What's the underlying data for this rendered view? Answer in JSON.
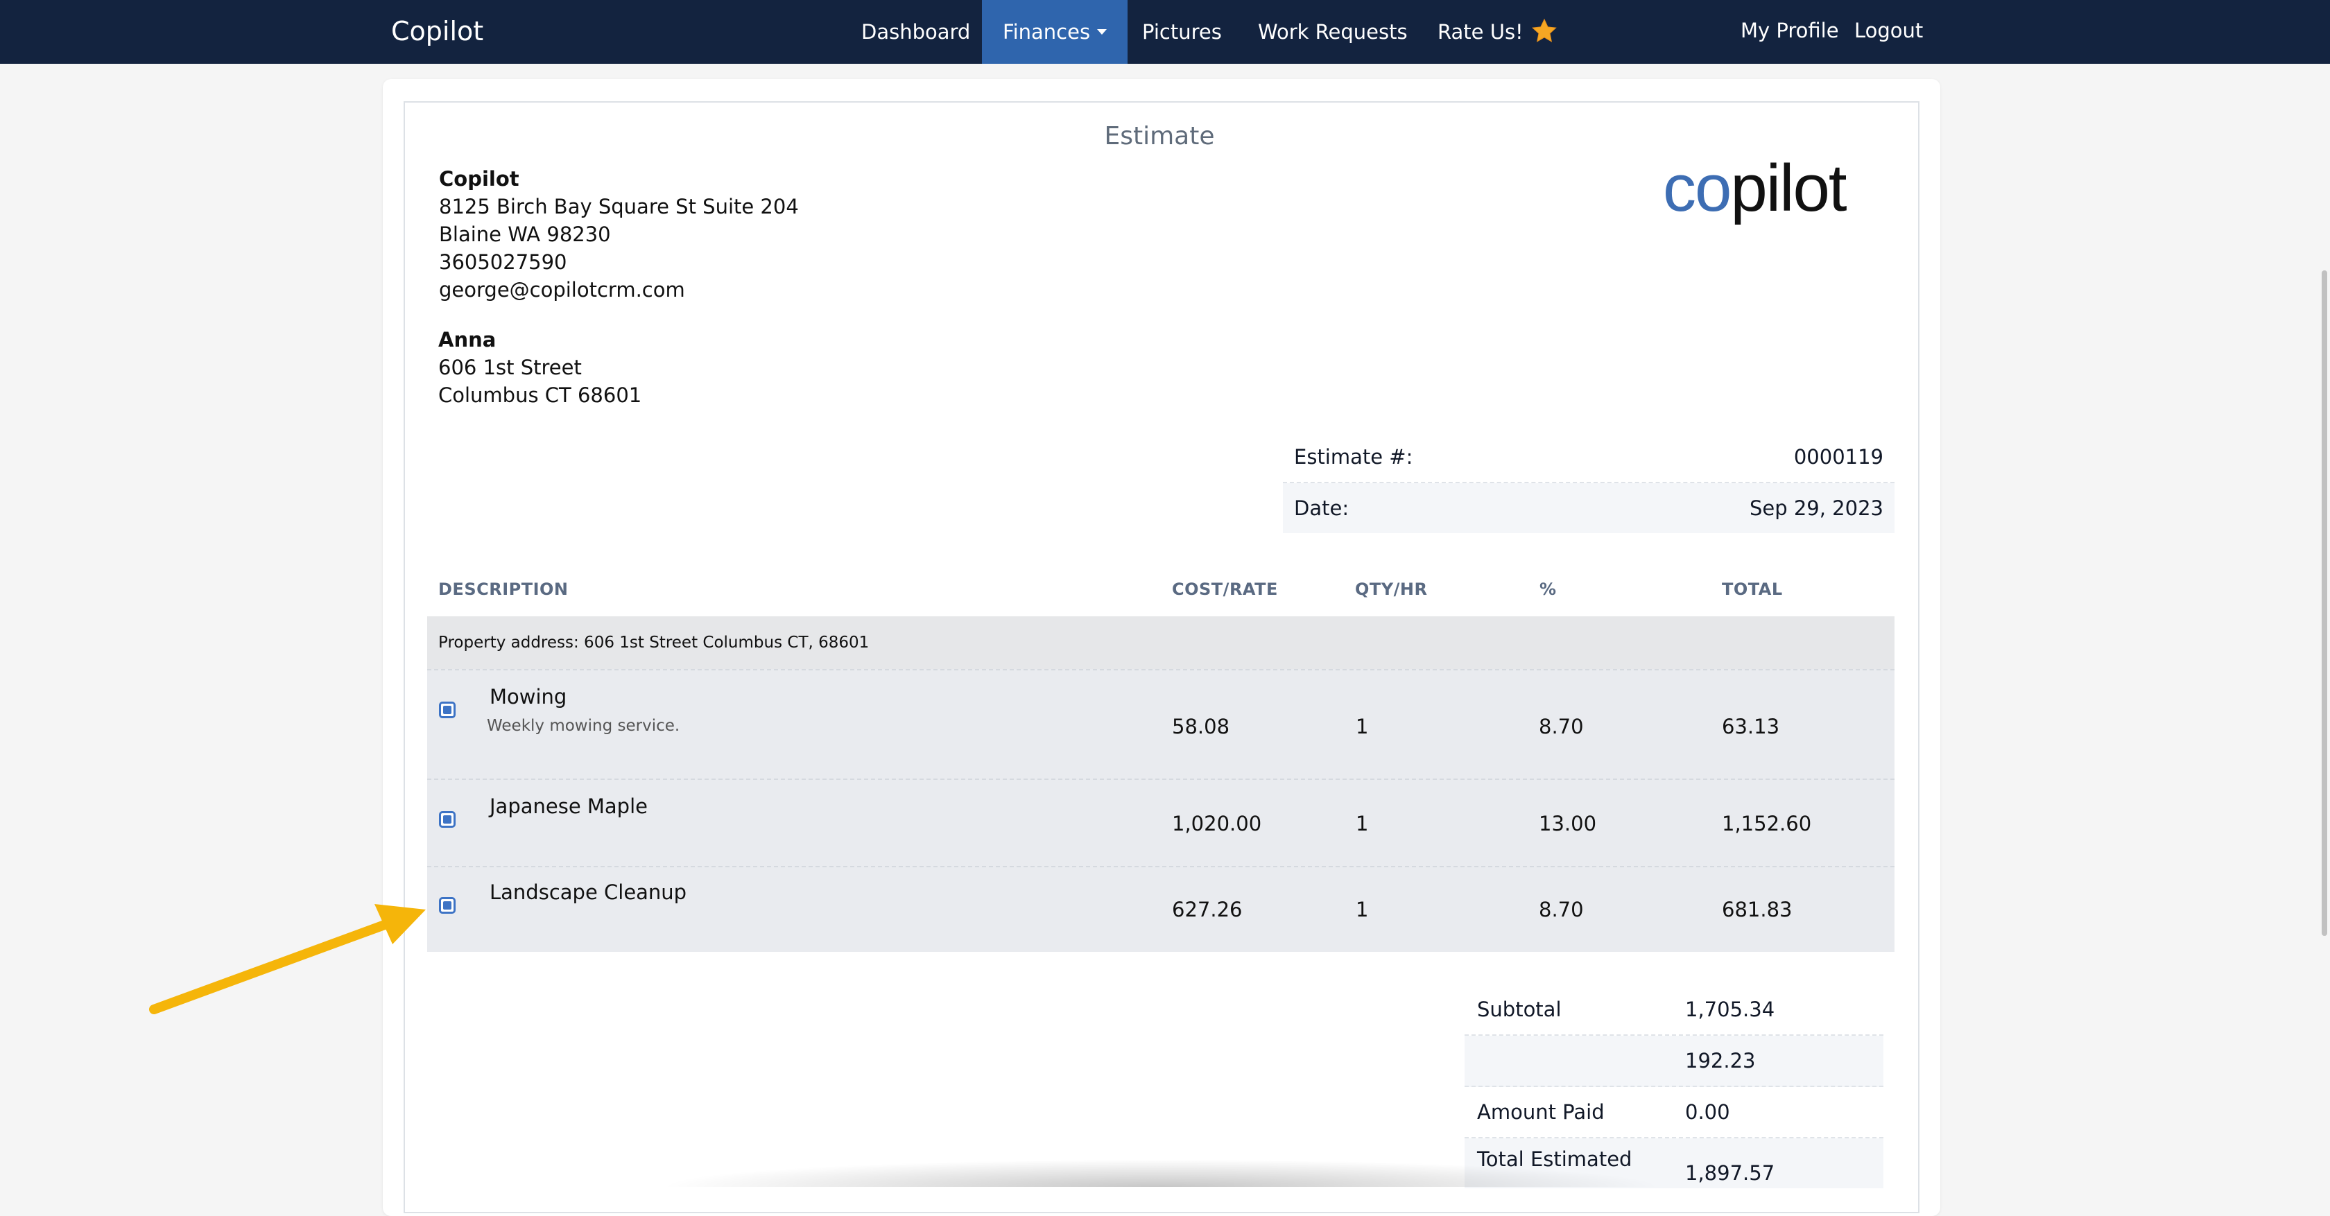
{
  "nav": {
    "brand": "Copilot",
    "items": [
      {
        "label": "Dashboard"
      },
      {
        "label": "Finances"
      },
      {
        "label": "Pictures"
      },
      {
        "label": "Work Requests"
      },
      {
        "label": "Rate Us!"
      }
    ],
    "right": {
      "profile": "My Profile",
      "logout": "Logout"
    }
  },
  "estimate": {
    "title": "Estimate",
    "logo_text": "copilot",
    "company": {
      "name": "Copilot",
      "address1": "8125 Birch Bay Square St Suite 204",
      "address2": "Blaine WA 98230",
      "phone": "3605027590",
      "email": "george@copilotcrm.com"
    },
    "customer": {
      "name": "Anna",
      "address1": "606 1st Street",
      "address2": "Columbus CT 68601"
    },
    "info": {
      "number_label": "Estimate #:",
      "number": "0000119",
      "date_label": "Date:",
      "date": "Sep 29, 2023"
    },
    "table": {
      "headers": {
        "description": "DESCRIPTION",
        "cost": "COST/RATE",
        "qty": "QTY/HR",
        "percent": "%",
        "total": "TOTAL"
      },
      "property_address": "Property address: 606 1st Street Columbus CT, 68601",
      "items": [
        {
          "name": "Mowing",
          "description": "Weekly mowing service.",
          "cost": "58.08",
          "qty": "1",
          "percent": "8.70",
          "total": "63.13"
        },
        {
          "name": "Japanese Maple",
          "cost": "1,020.00",
          "qty": "1",
          "percent": "13.00",
          "total": "1,152.60"
        },
        {
          "name": "Landscape Cleanup",
          "cost": "627.26",
          "qty": "1",
          "percent": "8.70",
          "total": "681.83"
        }
      ]
    },
    "totals": {
      "subtotal_label": "Subtotal",
      "subtotal": "1,705.34",
      "tax": "192.23",
      "paid_label": "Amount Paid",
      "paid": "0.00",
      "total_label": "Total Estimated",
      "total": "1,897.57"
    }
  },
  "colors": {
    "navbar": "#13233f",
    "nav_active": "#2f65ad",
    "checkbox": "#3d73c5",
    "arrow": "#f5b50a",
    "logo_blue": "#3d6db3"
  }
}
